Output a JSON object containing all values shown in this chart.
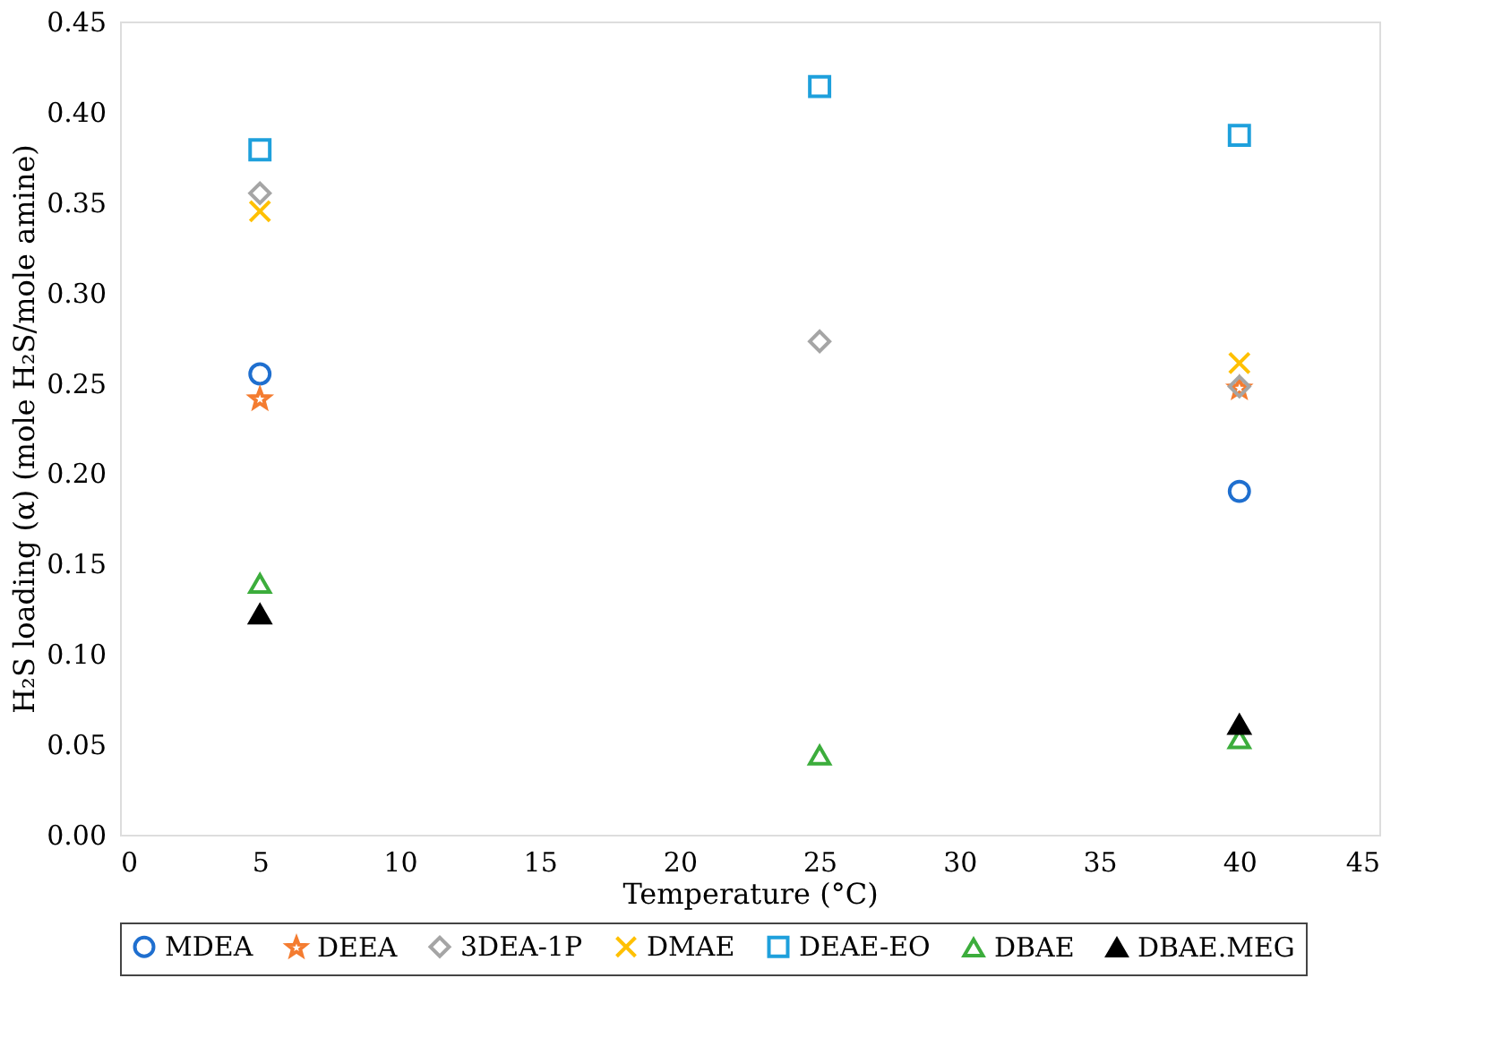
{
  "chart_data": {
    "type": "scatter",
    "xlabel": "Temperature (°C)",
    "ylabel": "H₂S loading (α) (mole H₂S/mole amine)",
    "xlim": [
      0,
      45
    ],
    "xticks": [
      0,
      5,
      10,
      15,
      20,
      25,
      30,
      35,
      40,
      45
    ],
    "ylim": [
      0,
      0.45
    ],
    "yticks": [
      {
        "value": 0,
        "label": "0.00"
      },
      0.05,
      {
        "value": 0.1,
        "label": "0.10"
      },
      0.15,
      {
        "value": 0.2,
        "label": "0.20"
      },
      0.25,
      {
        "value": 0.3,
        "label": "0.30"
      },
      0.35,
      {
        "value": 0.4,
        "label": "0.40"
      },
      0.45
    ],
    "grid": false,
    "legend": "bottom",
    "series": [
      {
        "name": "MDEA",
        "color": "#1f6fcf",
        "marker": "circle",
        "x": [
          5,
          40
        ],
        "values": [
          0.255,
          0.19
        ]
      },
      {
        "name": "DEEA",
        "color": "#f47c30",
        "marker": "star",
        "x": [
          5,
          40
        ],
        "values": [
          0.241,
          0.247
        ]
      },
      {
        "name": "3DEA-1P",
        "color": "#a5a5a5",
        "marker": "diamond",
        "x": [
          5,
          25,
          40
        ],
        "values": [
          0.355,
          0.273,
          0.248
        ]
      },
      {
        "name": "DMAE",
        "color": "#ffc000",
        "marker": "cross",
        "x": [
          5,
          40
        ],
        "values": [
          0.345,
          0.261
        ]
      },
      {
        "name": "DEAE-EO",
        "color": "#1ea0dc",
        "marker": "square",
        "x": [
          5,
          25,
          40
        ],
        "values": [
          0.379,
          0.414,
          0.387
        ]
      },
      {
        "name": "DBAE",
        "color": "#3cad3c",
        "marker": "triangle",
        "x": [
          5,
          25,
          40
        ],
        "values": [
          0.139,
          0.044,
          0.053
        ]
      },
      {
        "name": "DBAE.MEG",
        "color": "#000000",
        "marker": "triangle",
        "x": [
          5,
          40
        ],
        "values": [
          0.122,
          0.061
        ]
      }
    ]
  }
}
